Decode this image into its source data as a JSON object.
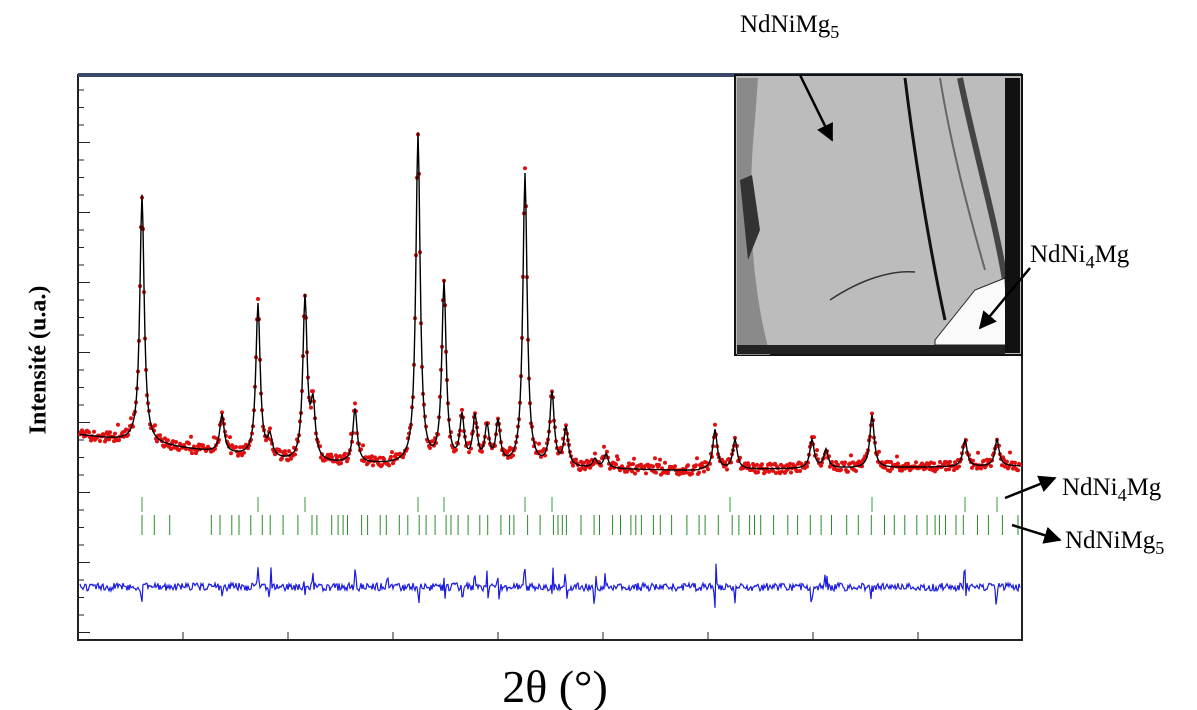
{
  "figure": {
    "inset_label_top": {
      "parts": [
        {
          "text": "NdNiMg"
        },
        {
          "text": "5",
          "sub": true
        }
      ]
    },
    "inset_label_side": {
      "parts": [
        {
          "text": "NdNi"
        },
        {
          "text": "4",
          "sub": true
        },
        {
          "text": "Mg"
        }
      ]
    },
    "phase_label_1": {
      "parts": [
        {
          "text": "NdNi"
        },
        {
          "text": "4",
          "sub": true
        },
        {
          "text": "Mg"
        }
      ]
    },
    "phase_label_2": {
      "parts": [
        {
          "text": "NdNiMg"
        },
        {
          "text": "5",
          "sub": true
        }
      ]
    },
    "y_axis_label": "Intensité (u.a.)",
    "x_axis_label": "2θ (°)"
  }
}
